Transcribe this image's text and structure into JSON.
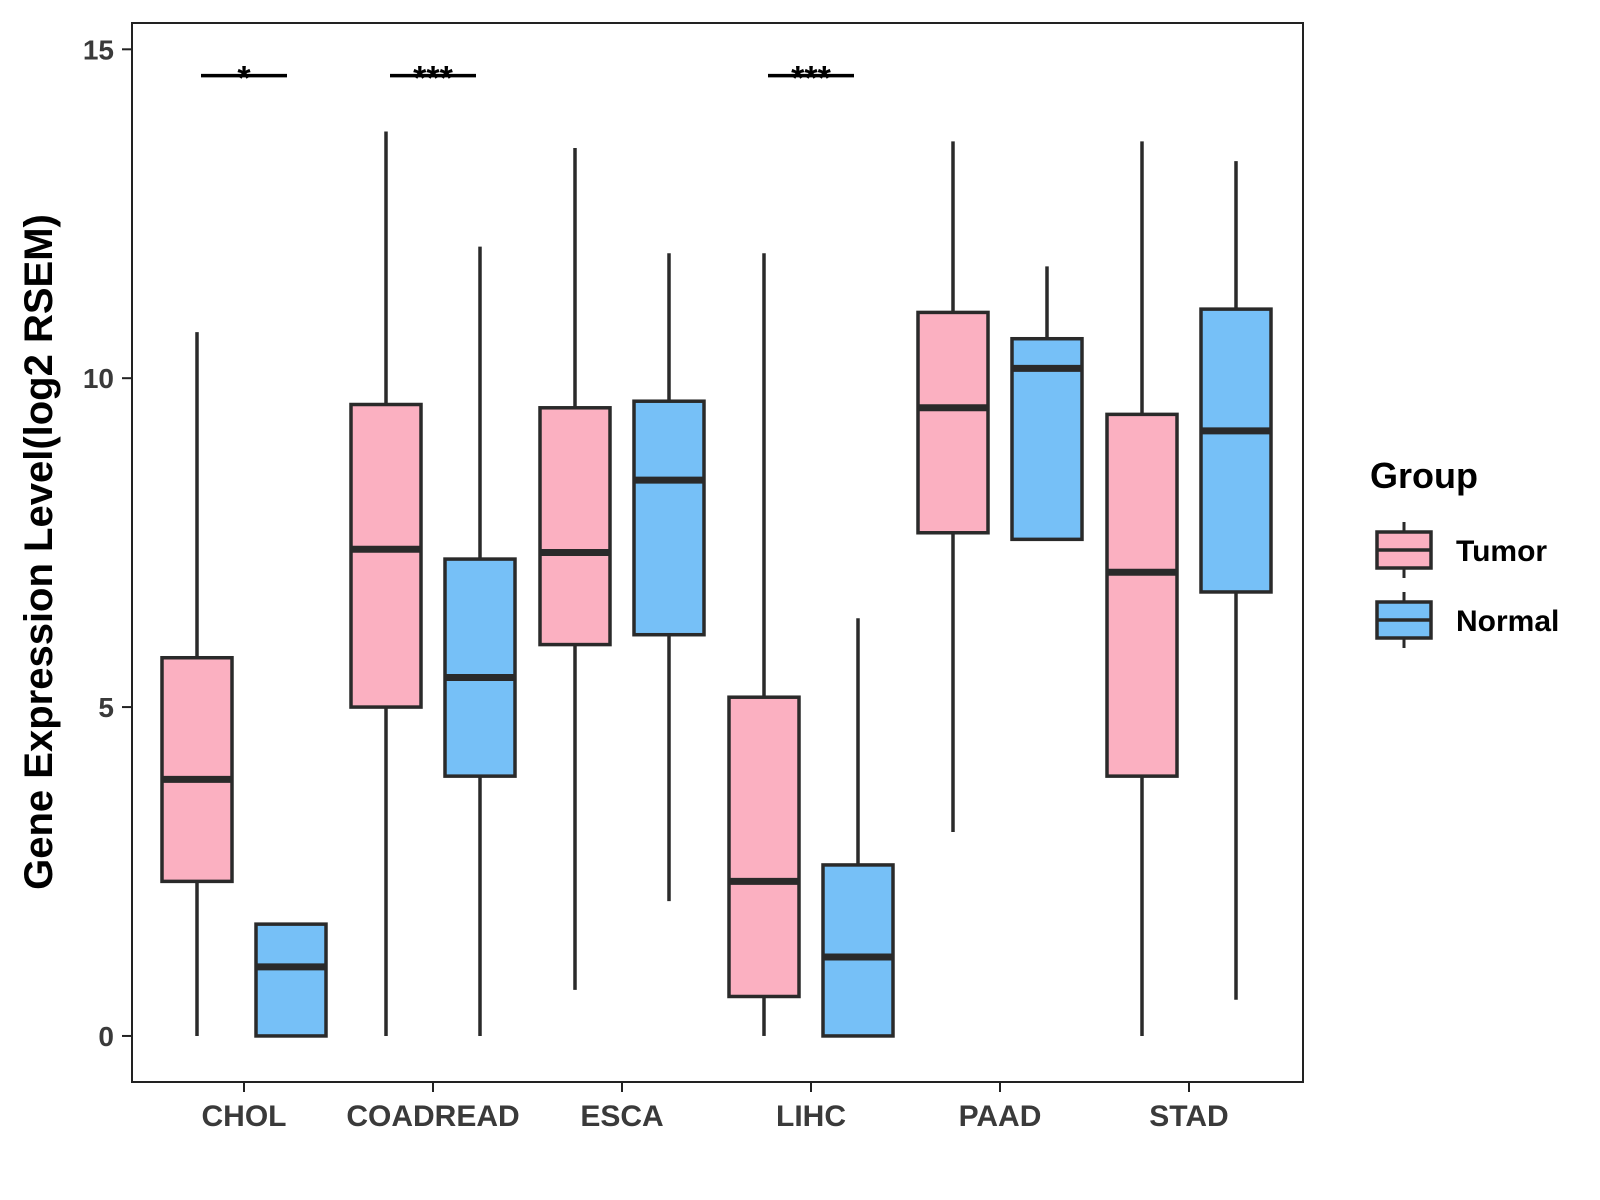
{
  "chart_data": {
    "type": "boxplot",
    "title": "",
    "xlabel": "",
    "ylabel": "Gene Expression Level(log2 RSEM)",
    "ylim": [
      -0.7,
      15.4
    ],
    "yticks": [
      0,
      5,
      10,
      15
    ],
    "categories": [
      "CHOL",
      "COADREAD",
      "ESCA",
      "LIHC",
      "PAAD",
      "STAD"
    ],
    "legend": {
      "title": "Group",
      "position": "right",
      "entries": [
        {
          "name": "Tumor",
          "color": "#FBB0C1"
        },
        {
          "name": "Normal",
          "color": "#76C0F7"
        }
      ]
    },
    "series": [
      {
        "name": "Tumor",
        "color": "#FBB0C1",
        "boxes": [
          {
            "category": "CHOL",
            "min": 0.0,
            "q1": 2.35,
            "median": 3.9,
            "q3": 5.75,
            "max": 10.7
          },
          {
            "category": "COADREAD",
            "min": 0.0,
            "q1": 5.0,
            "median": 7.4,
            "q3": 9.6,
            "max": 13.75
          },
          {
            "category": "ESCA",
            "min": 0.7,
            "q1": 5.95,
            "median": 7.35,
            "q3": 9.55,
            "max": 13.5
          },
          {
            "category": "LIHC",
            "min": 0.0,
            "q1": 0.6,
            "median": 2.35,
            "q3": 5.15,
            "max": 11.9
          },
          {
            "category": "PAAD",
            "min": 3.1,
            "q1": 7.65,
            "median": 9.55,
            "q3": 11.0,
            "max": 13.6
          },
          {
            "category": "STAD",
            "min": 0.0,
            "q1": 3.95,
            "median": 7.05,
            "q3": 9.45,
            "max": 13.6
          }
        ]
      },
      {
        "name": "Normal",
        "color": "#76C0F7",
        "boxes": [
          {
            "category": "CHOL",
            "min": 0.0,
            "q1": 0.0,
            "median": 1.05,
            "q3": 1.7,
            "max": 1.7
          },
          {
            "category": "COADREAD",
            "min": 0.0,
            "q1": 3.95,
            "median": 5.45,
            "q3": 7.25,
            "max": 12.0
          },
          {
            "category": "ESCA",
            "min": 2.05,
            "q1": 6.1,
            "median": 8.45,
            "q3": 9.65,
            "max": 11.9
          },
          {
            "category": "LIHC",
            "min": 0.0,
            "q1": 0.0,
            "median": 1.2,
            "q3": 2.6,
            "max": 6.35
          },
          {
            "category": "PAAD",
            "min": 7.55,
            "q1": 7.55,
            "median": 10.15,
            "q3": 10.6,
            "max": 11.7
          },
          {
            "category": "STAD",
            "min": 0.55,
            "q1": 6.75,
            "median": 9.2,
            "q3": 11.05,
            "max": 13.3
          }
        ]
      }
    ],
    "significance": [
      {
        "category": "CHOL",
        "label": "*",
        "y": 14.6
      },
      {
        "category": "COADREAD",
        "label": "***",
        "y": 14.6
      },
      {
        "category": "LIHC",
        "label": "***",
        "y": 14.6
      }
    ]
  }
}
